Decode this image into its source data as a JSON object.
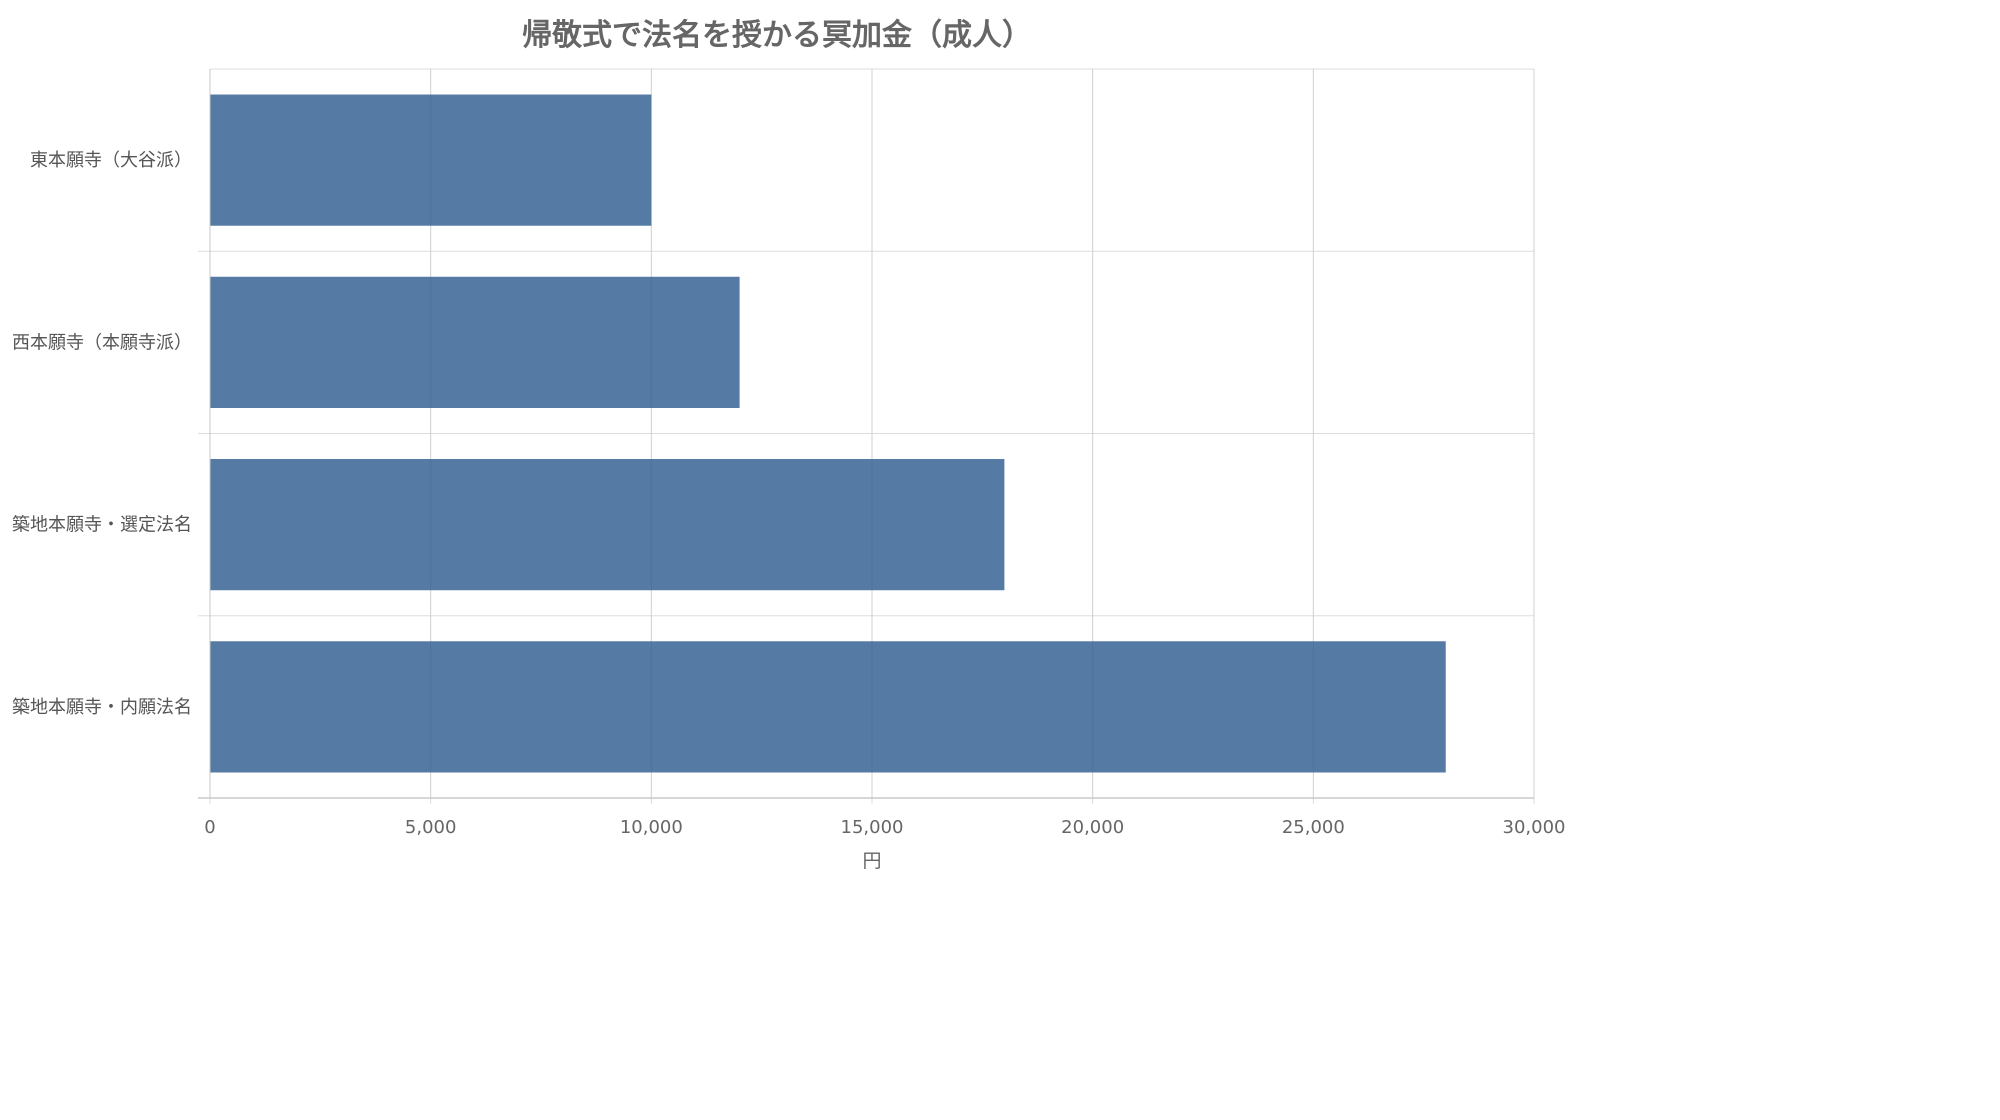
{
  "colors": {
    "bar": "#4E76A0",
    "grid": "#dddddd",
    "axis": "#c8c8c8",
    "text": "#666666"
  },
  "chart_data": {
    "type": "bar",
    "orientation": "horizontal",
    "title": "帰敬式で法名を授かる冥加金（成人）",
    "xlabel": "円",
    "ylabel": "",
    "categories": [
      "東本願寺（大谷派）",
      "西本願寺（本願寺派）",
      "築地本願寺・選定法名",
      "築地本願寺・内願法名"
    ],
    "values": [
      10000,
      12000,
      18000,
      28000
    ],
    "xlim": [
      0,
      30000
    ],
    "xticks": [
      0,
      5000,
      10000,
      15000,
      20000,
      25000,
      30000
    ],
    "xtick_labels": [
      "0",
      "5,000",
      "10,000",
      "15,000",
      "20,000",
      "25,000",
      "30,000"
    ],
    "grid": true,
    "legend": "none"
  }
}
